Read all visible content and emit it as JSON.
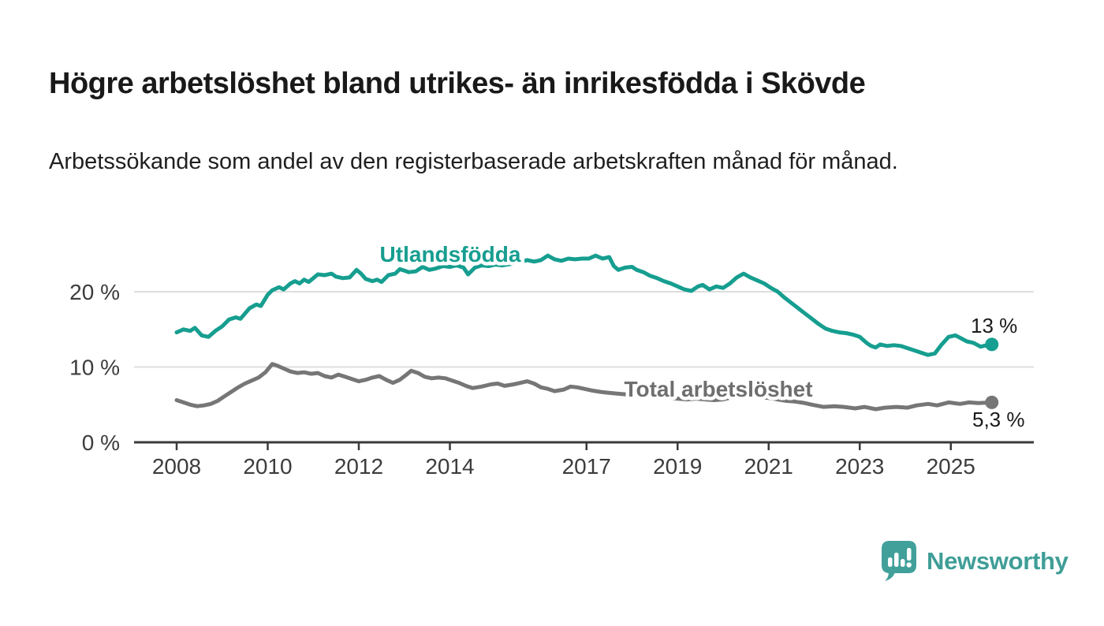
{
  "header": {
    "title": "Högre arbetslöshet bland utrikes- än inrikesfödda i Skövde",
    "subtitle": "Arbetssökande som andel av den registerbaserade arbetskraften månad för månad."
  },
  "footer": {
    "brand": "Newsworthy"
  },
  "colors": {
    "accent_teal": "#169e90",
    "logo_teal": "#41a09a",
    "series_gray": "#767676",
    "label_gray": "#6e6e6e",
    "axis_text": "#3c3c3c",
    "value_text": "#1a1a1a",
    "gridline": "#dedede",
    "axis_line": "#3a3a3a"
  },
  "chart_data": {
    "type": "line",
    "title": "Högre arbetslöshet bland utrikes- än inrikesfödda i Skövde",
    "subtitle": "Arbetssökande som andel av den registerbaserade arbetskraften månad för månad.",
    "xlabel": "",
    "ylabel": "",
    "x_range": [
      2008,
      2025.9
    ],
    "ylim": [
      0,
      27
    ],
    "grid": "horizontal",
    "legend_position": "inline-labels",
    "x_ticks": [
      {
        "value": 2008,
        "label": "2008"
      },
      {
        "value": 2010,
        "label": "2010"
      },
      {
        "value": 2012,
        "label": "2012"
      },
      {
        "value": 2014,
        "label": "2014"
      },
      {
        "value": 2017,
        "label": "2017"
      },
      {
        "value": 2019,
        "label": "2019"
      },
      {
        "value": 2021,
        "label": "2021"
      },
      {
        "value": 2023,
        "label": "2023"
      },
      {
        "value": 2025,
        "label": "2025"
      }
    ],
    "y_ticks": [
      {
        "value": 0,
        "label": "0 %"
      },
      {
        "value": 10,
        "label": "10 %"
      },
      {
        "value": 20,
        "label": "20 %"
      }
    ],
    "series": [
      {
        "name": "Utlandsfödda",
        "color": "#169e90",
        "end_value_label": "13 %",
        "points": [
          [
            2008.0,
            14.6
          ],
          [
            2008.15,
            15.0
          ],
          [
            2008.3,
            14.8
          ],
          [
            2008.4,
            15.2
          ],
          [
            2008.55,
            14.2
          ],
          [
            2008.7,
            14.0
          ],
          [
            2008.85,
            14.8
          ],
          [
            2009.0,
            15.4
          ],
          [
            2009.15,
            16.3
          ],
          [
            2009.3,
            16.6
          ],
          [
            2009.4,
            16.4
          ],
          [
            2009.6,
            17.8
          ],
          [
            2009.75,
            18.3
          ],
          [
            2009.85,
            18.1
          ],
          [
            2010.0,
            19.6
          ],
          [
            2010.1,
            20.2
          ],
          [
            2010.25,
            20.6
          ],
          [
            2010.35,
            20.3
          ],
          [
            2010.5,
            21.1
          ],
          [
            2010.6,
            21.4
          ],
          [
            2010.7,
            21.1
          ],
          [
            2010.8,
            21.6
          ],
          [
            2010.9,
            21.3
          ],
          [
            2011.0,
            21.8
          ],
          [
            2011.1,
            22.3
          ],
          [
            2011.25,
            22.2
          ],
          [
            2011.4,
            22.4
          ],
          [
            2011.5,
            22.0
          ],
          [
            2011.65,
            21.8
          ],
          [
            2011.8,
            21.9
          ],
          [
            2011.95,
            22.9
          ],
          [
            2012.05,
            22.4
          ],
          [
            2012.15,
            21.7
          ],
          [
            2012.3,
            21.4
          ],
          [
            2012.4,
            21.6
          ],
          [
            2012.5,
            21.3
          ],
          [
            2012.65,
            22.2
          ],
          [
            2012.8,
            22.4
          ],
          [
            2012.9,
            23.0
          ],
          [
            2013.0,
            22.8
          ],
          [
            2013.1,
            22.6
          ],
          [
            2013.25,
            22.7
          ],
          [
            2013.4,
            23.3
          ],
          [
            2013.55,
            22.9
          ],
          [
            2013.7,
            23.1
          ],
          [
            2013.85,
            23.4
          ],
          [
            2014.0,
            23.3
          ],
          [
            2014.15,
            23.5
          ],
          [
            2014.3,
            23.2
          ],
          [
            2014.4,
            22.3
          ],
          [
            2014.55,
            23.2
          ],
          [
            2014.7,
            23.5
          ],
          [
            2014.85,
            23.4
          ],
          [
            2015.0,
            23.6
          ],
          [
            2015.15,
            23.5
          ],
          [
            2015.35,
            23.7
          ],
          [
            2015.55,
            24.0
          ],
          [
            2015.7,
            24.2
          ],
          [
            2015.85,
            24.0
          ],
          [
            2016.0,
            24.2
          ],
          [
            2016.15,
            24.8
          ],
          [
            2016.3,
            24.3
          ],
          [
            2016.45,
            24.1
          ],
          [
            2016.6,
            24.4
          ],
          [
            2016.75,
            24.3
          ],
          [
            2016.9,
            24.4
          ],
          [
            2017.05,
            24.4
          ],
          [
            2017.2,
            24.8
          ],
          [
            2017.35,
            24.4
          ],
          [
            2017.5,
            24.6
          ],
          [
            2017.6,
            23.4
          ],
          [
            2017.7,
            22.9
          ],
          [
            2017.85,
            23.2
          ],
          [
            2018.0,
            23.3
          ],
          [
            2018.1,
            22.9
          ],
          [
            2018.25,
            22.6
          ],
          [
            2018.4,
            22.1
          ],
          [
            2018.55,
            21.8
          ],
          [
            2018.7,
            21.4
          ],
          [
            2018.85,
            21.1
          ],
          [
            2019.0,
            20.7
          ],
          [
            2019.15,
            20.3
          ],
          [
            2019.3,
            20.1
          ],
          [
            2019.45,
            20.7
          ],
          [
            2019.55,
            20.9
          ],
          [
            2019.7,
            20.3
          ],
          [
            2019.85,
            20.7
          ],
          [
            2020.0,
            20.5
          ],
          [
            2020.15,
            21.1
          ],
          [
            2020.3,
            21.9
          ],
          [
            2020.45,
            22.4
          ],
          [
            2020.6,
            21.9
          ],
          [
            2020.75,
            21.5
          ],
          [
            2020.9,
            21.1
          ],
          [
            2021.05,
            20.5
          ],
          [
            2021.2,
            20.0
          ],
          [
            2021.35,
            19.2
          ],
          [
            2021.5,
            18.5
          ],
          [
            2021.65,
            17.8
          ],
          [
            2021.8,
            17.1
          ],
          [
            2021.95,
            16.4
          ],
          [
            2022.1,
            15.7
          ],
          [
            2022.25,
            15.1
          ],
          [
            2022.4,
            14.8
          ],
          [
            2022.55,
            14.6
          ],
          [
            2022.7,
            14.5
          ],
          [
            2022.85,
            14.3
          ],
          [
            2023.0,
            14.0
          ],
          [
            2023.15,
            13.2
          ],
          [
            2023.25,
            12.8
          ],
          [
            2023.35,
            12.6
          ],
          [
            2023.45,
            13.0
          ],
          [
            2023.6,
            12.8
          ],
          [
            2023.75,
            12.9
          ],
          [
            2023.9,
            12.8
          ],
          [
            2024.05,
            12.5
          ],
          [
            2024.2,
            12.2
          ],
          [
            2024.35,
            11.9
          ],
          [
            2024.5,
            11.6
          ],
          [
            2024.65,
            11.8
          ],
          [
            2024.8,
            13.0
          ],
          [
            2024.95,
            14.0
          ],
          [
            2025.1,
            14.2
          ],
          [
            2025.2,
            13.9
          ],
          [
            2025.35,
            13.4
          ],
          [
            2025.5,
            13.2
          ],
          [
            2025.65,
            12.7
          ],
          [
            2025.8,
            12.9
          ],
          [
            2025.9,
            13.0
          ]
        ]
      },
      {
        "name": "Total arbetslöshet",
        "color": "#767676",
        "end_value_label": "5,3 %",
        "points": [
          [
            2008.0,
            5.6
          ],
          [
            2008.15,
            5.3
          ],
          [
            2008.3,
            5.0
          ],
          [
            2008.45,
            4.8
          ],
          [
            2008.6,
            4.9
          ],
          [
            2008.75,
            5.1
          ],
          [
            2008.9,
            5.5
          ],
          [
            2009.05,
            6.1
          ],
          [
            2009.2,
            6.7
          ],
          [
            2009.35,
            7.3
          ],
          [
            2009.5,
            7.8
          ],
          [
            2009.65,
            8.2
          ],
          [
            2009.8,
            8.6
          ],
          [
            2009.95,
            9.3
          ],
          [
            2010.1,
            10.4
          ],
          [
            2010.2,
            10.2
          ],
          [
            2010.35,
            9.8
          ],
          [
            2010.5,
            9.4
          ],
          [
            2010.65,
            9.2
          ],
          [
            2010.8,
            9.3
          ],
          [
            2010.95,
            9.1
          ],
          [
            2011.1,
            9.2
          ],
          [
            2011.25,
            8.8
          ],
          [
            2011.4,
            8.6
          ],
          [
            2011.55,
            9.0
          ],
          [
            2011.7,
            8.7
          ],
          [
            2011.85,
            8.4
          ],
          [
            2012.0,
            8.1
          ],
          [
            2012.15,
            8.3
          ],
          [
            2012.3,
            8.6
          ],
          [
            2012.45,
            8.8
          ],
          [
            2012.6,
            8.3
          ],
          [
            2012.75,
            7.9
          ],
          [
            2012.9,
            8.3
          ],
          [
            2013.05,
            9.0
          ],
          [
            2013.15,
            9.5
          ],
          [
            2013.3,
            9.2
          ],
          [
            2013.45,
            8.7
          ],
          [
            2013.6,
            8.5
          ],
          [
            2013.75,
            8.6
          ],
          [
            2013.9,
            8.5
          ],
          [
            2014.05,
            8.2
          ],
          [
            2014.2,
            7.9
          ],
          [
            2014.35,
            7.5
          ],
          [
            2014.5,
            7.2
          ],
          [
            2014.7,
            7.4
          ],
          [
            2014.9,
            7.7
          ],
          [
            2015.05,
            7.8
          ],
          [
            2015.2,
            7.5
          ],
          [
            2015.4,
            7.7
          ],
          [
            2015.55,
            7.9
          ],
          [
            2015.7,
            8.1
          ],
          [
            2015.85,
            7.8
          ],
          [
            2016.0,
            7.3
          ],
          [
            2016.15,
            7.1
          ],
          [
            2016.3,
            6.8
          ],
          [
            2016.5,
            7.0
          ],
          [
            2016.65,
            7.4
          ],
          [
            2016.8,
            7.3
          ],
          [
            2016.95,
            7.1
          ],
          [
            2017.1,
            6.9
          ],
          [
            2017.3,
            6.7
          ],
          [
            2017.45,
            6.6
          ],
          [
            2017.6,
            6.5
          ],
          [
            2017.8,
            6.4
          ],
          [
            2018.0,
            6.3
          ],
          [
            2018.2,
            6.2
          ],
          [
            2018.4,
            6.1
          ],
          [
            2018.6,
            6.0
          ],
          [
            2018.8,
            5.9
          ],
          [
            2019.0,
            5.8
          ],
          [
            2019.2,
            5.7
          ],
          [
            2019.4,
            5.8
          ],
          [
            2019.6,
            5.7
          ],
          [
            2019.8,
            5.6
          ],
          [
            2020.0,
            5.7
          ],
          [
            2020.2,
            6.0
          ],
          [
            2020.4,
            6.2
          ],
          [
            2020.6,
            6.1
          ],
          [
            2020.8,
            6.0
          ],
          [
            2021.0,
            5.9
          ],
          [
            2021.2,
            5.7
          ],
          [
            2021.4,
            5.5
          ],
          [
            2021.6,
            5.4
          ],
          [
            2021.8,
            5.2
          ],
          [
            2021.95,
            5.0
          ],
          [
            2022.2,
            4.7
          ],
          [
            2022.45,
            4.8
          ],
          [
            2022.65,
            4.7
          ],
          [
            2022.9,
            4.5
          ],
          [
            2023.1,
            4.7
          ],
          [
            2023.35,
            4.4
          ],
          [
            2023.55,
            4.6
          ],
          [
            2023.8,
            4.7
          ],
          [
            2024.05,
            4.6
          ],
          [
            2024.25,
            4.9
          ],
          [
            2024.5,
            5.1
          ],
          [
            2024.7,
            4.9
          ],
          [
            2024.95,
            5.3
          ],
          [
            2025.2,
            5.1
          ],
          [
            2025.4,
            5.3
          ],
          [
            2025.6,
            5.2
          ],
          [
            2025.9,
            5.3
          ]
        ]
      }
    ]
  }
}
